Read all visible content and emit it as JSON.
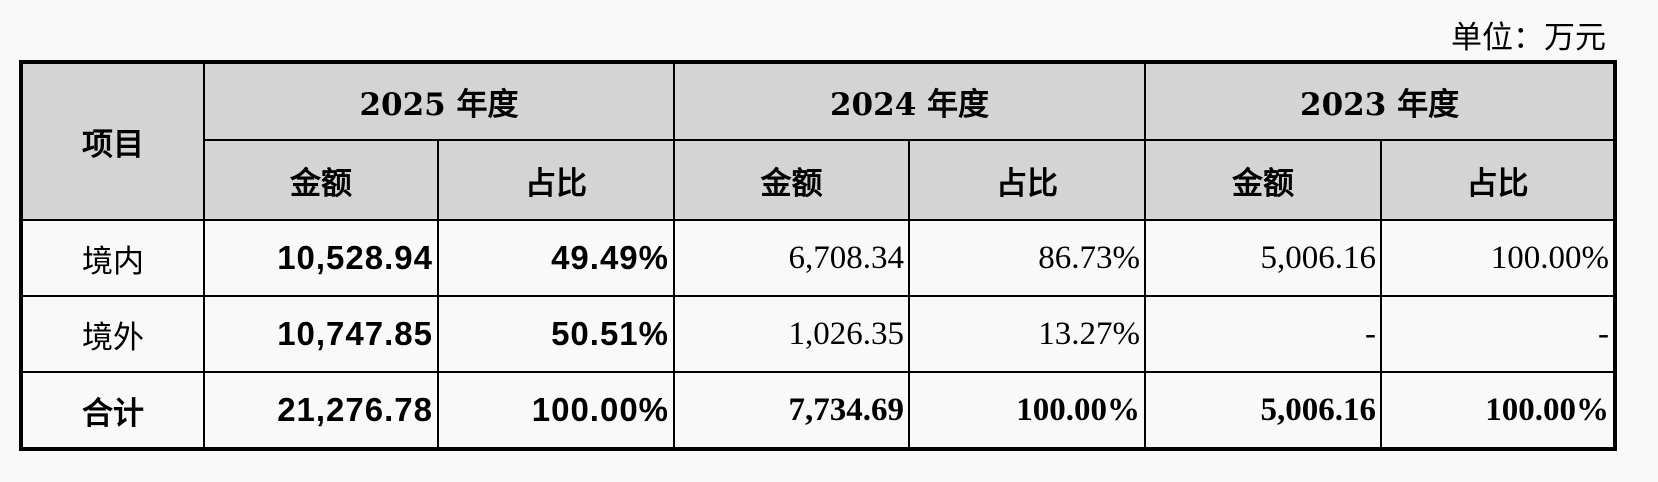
{
  "unit_label": "单位：万元",
  "header": {
    "item": "项目",
    "years": [
      "2025 年度",
      "2024 年度",
      "2023 年度"
    ],
    "sub": {
      "amount": "金额",
      "ratio": "占比"
    }
  },
  "rows": [
    {
      "label": "境内",
      "v": [
        "10,528.94",
        "49.49%",
        "6,708.34",
        "86.73%",
        "5,006.16",
        "100.00%"
      ]
    },
    {
      "label": "境外",
      "v": [
        "10,747.85",
        "50.51%",
        "1,026.35",
        "13.27%",
        "-",
        "-"
      ]
    },
    {
      "label": "合计",
      "v": [
        "21,276.78",
        "100.00%",
        "7,734.69",
        "100.00%",
        "5,006.16",
        "100.00%"
      ]
    }
  ]
}
